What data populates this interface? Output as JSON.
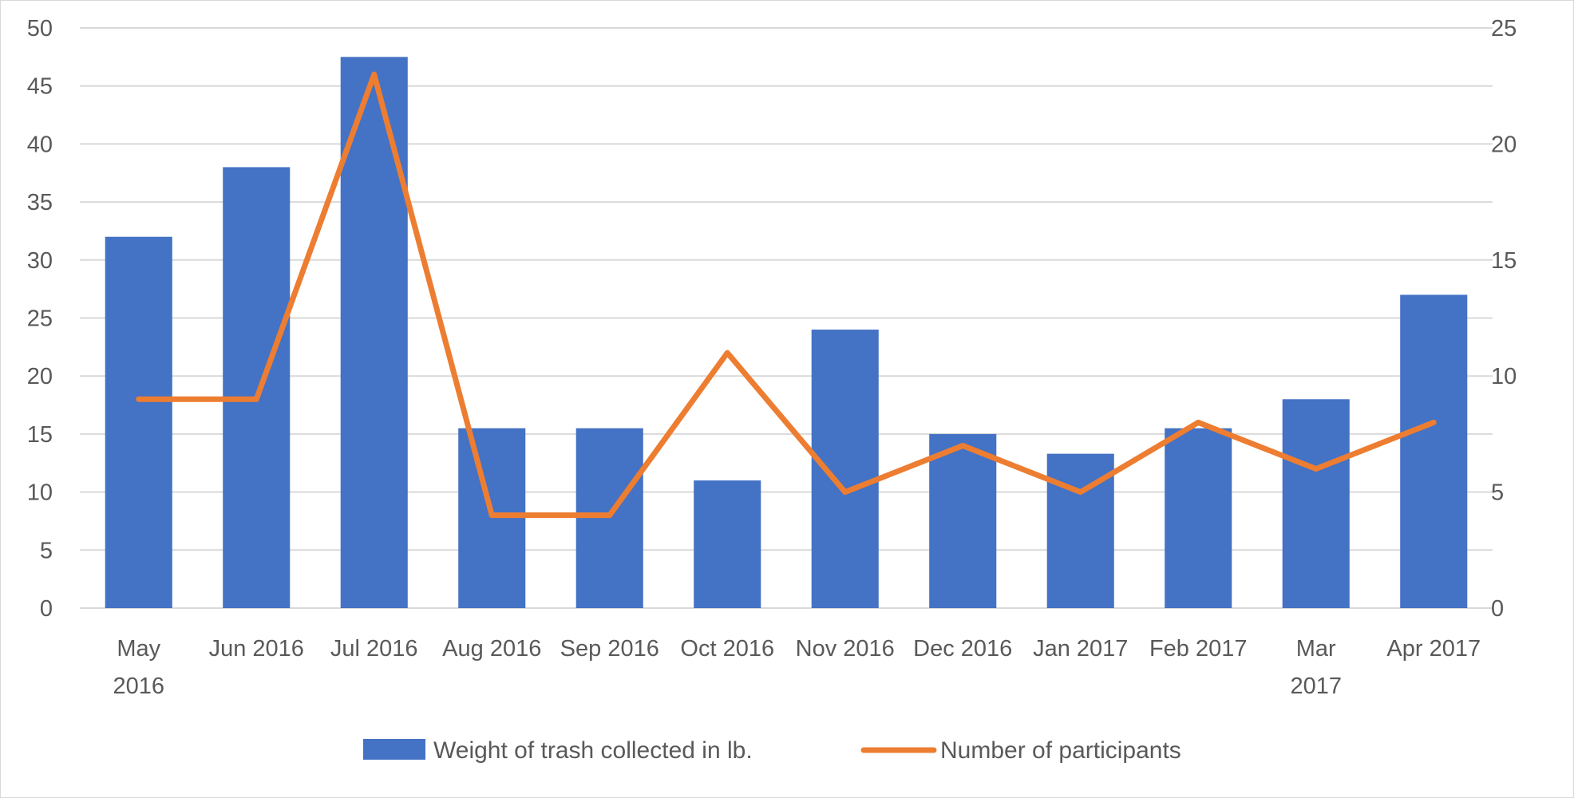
{
  "chart_data": {
    "type": "bar",
    "title": "",
    "xlabel": "",
    "ylabel": "",
    "y2label": "",
    "categories": [
      [
        "May",
        "2016"
      ],
      [
        "Jun 2016"
      ],
      [
        "Jul 2016"
      ],
      [
        "Aug 2016"
      ],
      [
        "Sep 2016"
      ],
      [
        "Oct 2016"
      ],
      [
        "Nov 2016"
      ],
      [
        "Dec 2016"
      ],
      [
        "Jan 2017"
      ],
      [
        "Feb 2017"
      ],
      [
        "Mar",
        "2017"
      ],
      [
        "Apr 2017"
      ]
    ],
    "ylim": [
      0,
      50
    ],
    "y_ticks": [
      0,
      5,
      10,
      15,
      20,
      25,
      30,
      35,
      40,
      45,
      50
    ],
    "y2lim": [
      0,
      25
    ],
    "y2_ticks": [
      0,
      5,
      10,
      15,
      20,
      25
    ],
    "grid": true,
    "legend_position": "bottom",
    "series": [
      {
        "name": "Weight of trash collected in lb.",
        "type": "bar",
        "axis": "left",
        "color": "#4472C4",
        "values": [
          32,
          38,
          47.5,
          15.5,
          15.5,
          11,
          24,
          15,
          13.3,
          15.5,
          18,
          27
        ]
      },
      {
        "name": "Number of participants",
        "type": "line",
        "axis": "right",
        "color": "#ED7D31",
        "values": [
          9,
          9,
          23,
          4,
          4,
          11,
          5,
          7,
          5,
          8,
          6,
          8
        ]
      }
    ]
  }
}
